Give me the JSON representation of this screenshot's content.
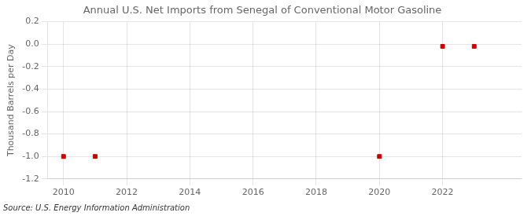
{
  "chart_data": {
    "type": "scatter",
    "title": "Annual U.S. Net Imports from Senegal of Conventional Motor Gasoline",
    "ylabel": "Thousand Barrels per Day",
    "annotation": "Source: U.S. Energy Information Administration",
    "x": [
      2010,
      2011,
      2020,
      2022,
      2023
    ],
    "values": [
      -1.0,
      -1.0,
      -1.0,
      -0.02,
      -0.02
    ],
    "color": "#cc0000",
    "marker": "square",
    "xlim": [
      2009.5,
      2024.5
    ],
    "xticks": [
      2010,
      2012,
      2014,
      2016,
      2018,
      2020,
      2022
    ],
    "ylim": [
      -1.2,
      0.2
    ],
    "yticks": [
      0.2,
      {
        "value": 0,
        "label": "0.0"
      },
      -0.2,
      -0.4,
      -0.6,
      -0.8,
      {
        "value": -1,
        "label": "-1.0"
      },
      -1.2
    ],
    "grid": true
  }
}
